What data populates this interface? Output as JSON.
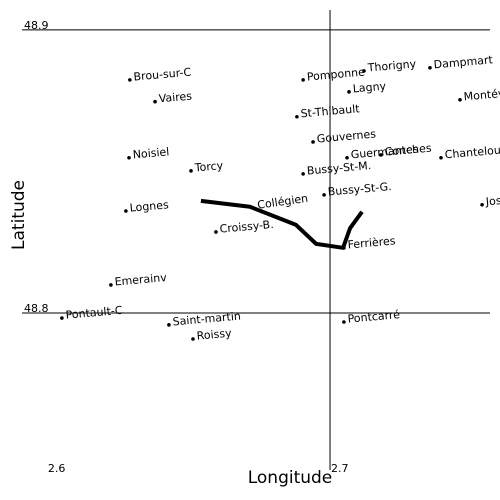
{
  "chart_data": {
    "type": "scatter",
    "x_label": "Longitude",
    "y_label": "Latitude",
    "xlim": [
      2.5905,
      2.7565
    ],
    "ylim": [
      48.741,
      48.907
    ],
    "xticks": [
      2.6,
      2.7
    ],
    "yticks": [
      48.8,
      48.9
    ],
    "grid": true,
    "color": "#000000",
    "labels": [
      "Brou-sur-C",
      "Vaires",
      "Noisiel",
      "Torcy",
      "Lognes",
      "Croissy-B.",
      "Emerainv",
      "Pontault-C",
      "Saint-martin",
      "Roissy",
      "Pomponne",
      "Thorigny",
      "Dampmart",
      "Lagny",
      "Montévrain",
      "St-Thibault",
      "Gouvernes",
      "Guermantes",
      "Conches",
      "Chanteloup",
      "Bussy-St-M.",
      "Bussy-St-G.",
      "Jossigny",
      "Ferrières",
      "Pontcarré"
    ],
    "x": [
      2.6293,
      2.6382,
      2.629,
      2.6509,
      2.6279,
      2.6597,
      2.6226,
      2.6053,
      2.6431,
      2.6516,
      2.6905,
      2.712,
      2.7353,
      2.7067,
      2.7459,
      2.6883,
      2.694,
      2.706,
      2.718,
      2.7392,
      2.6905,
      2.6979,
      2.7537,
      2.7049,
      2.7049
    ],
    "y": [
      48.8823,
      48.8746,
      48.8548,
      48.8502,
      48.836,
      48.8286,
      48.8099,
      48.7982,
      48.7958,
      48.7908,
      48.8823,
      48.8855,
      48.8866,
      48.8781,
      48.8753,
      48.8693,
      48.8604,
      48.8548,
      48.8558,
      48.8548,
      48.8491,
      48.8417,
      48.8382,
      48.823,
      48.7968
    ],
    "line": {
      "name": "Collégien",
      "color": "#000000",
      "x": [
        2.6544,
        2.6717,
        2.688,
        2.6951,
        2.7046,
        2.7071,
        2.7113
      ],
      "y": [
        48.8396,
        48.8375,
        48.8311,
        48.8244,
        48.823,
        48.83,
        48.8357
      ]
    }
  }
}
